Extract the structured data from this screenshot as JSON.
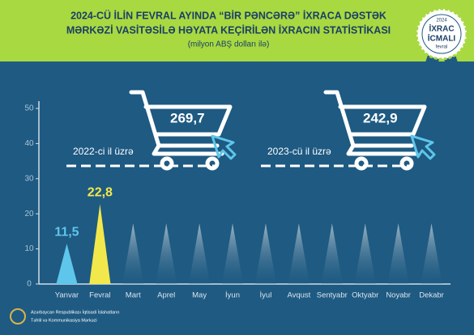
{
  "chart_data": {
    "type": "triangle",
    "title_lines": [
      "2024-CÜ İLİN FEVRAL AYINDA “BİR PƏNCƏRƏ” İXRACA DƏSTƏK",
      "MƏRKƏZİ VASİTƏSİLƏ HƏYATA KEÇİRİLƏN İXRACIN STATİSTİKASI"
    ],
    "subtitle": "(milyon ABŞ dolları ilə)",
    "categories": [
      "Yanvar",
      "Fevral",
      "Mart",
      "Aprel",
      "May",
      "İyun",
      "İyul",
      "Avqust",
      "Sentyabr",
      "Oktyabr",
      "Noyabr",
      "Dekabr"
    ],
    "values": [
      11.5,
      22.8,
      null,
      null,
      null,
      null,
      null,
      null,
      null,
      null,
      null,
      null
    ],
    "value_labels": [
      "11,5",
      "22,8",
      null,
      null,
      null,
      null,
      null,
      null,
      null,
      null,
      null,
      null
    ],
    "colors": [
      "#5ec6ea",
      "#f3e84b"
    ],
    "ylim": [
      0,
      50
    ],
    "yticks": [
      0,
      10,
      20,
      30,
      40,
      50
    ],
    "grid": false,
    "annotations": [
      {
        "label": "2022-ci il üzrə",
        "value": "269,7"
      },
      {
        "label": "2023-cü il üzrə",
        "value": "242,9"
      }
    ],
    "badge": [
      "2024",
      "İXRAC",
      "İCMALI",
      "fevral"
    ],
    "footer": [
      "Azərbaycan Respublikası İqtisadi İslahatların",
      "Təhlil və Kommunikasiya Mərkəzi"
    ]
  }
}
